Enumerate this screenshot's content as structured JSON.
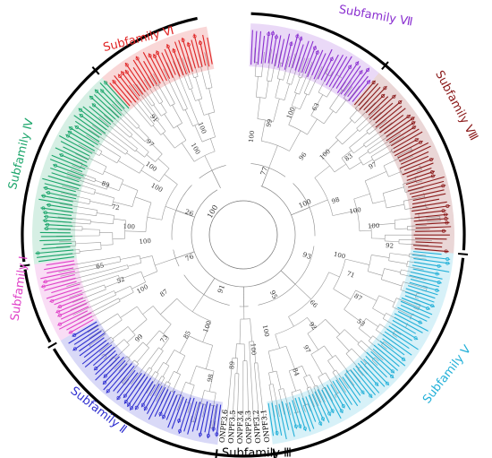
{
  "figure": {
    "subfamilies": [
      {
        "id": "I",
        "label": "Subfamily Ⅰ",
        "color": "#e040c8"
      },
      {
        "id": "II",
        "label": "Subfamily Ⅱ",
        "color": "#2f2fd0"
      },
      {
        "id": "III",
        "label": "Subfamily Ⅲ",
        "color": "#000000"
      },
      {
        "id": "IV",
        "label": "Subfamily Ⅳ",
        "color": "#1aa56a"
      },
      {
        "id": "V",
        "label": "Subfamily Ⅴ",
        "color": "#22b0d8"
      },
      {
        "id": "VI",
        "label": "Subfamily Ⅵ",
        "color": "#e02424"
      },
      {
        "id": "VII",
        "label": "Subfamily Ⅶ",
        "color": "#8a2fd0"
      },
      {
        "id": "VIII",
        "label": "Subfamily Ⅷ",
        "color": "#8b1a1a"
      }
    ],
    "center_support": "100",
    "inner_support_values": [
      "77",
      "100",
      "93",
      "95",
      "91",
      "76",
      "26"
    ],
    "outer_support_values": [
      "100",
      "99",
      "100",
      "63",
      "96",
      "100",
      "83",
      "97",
      "98",
      "100",
      "100",
      "92",
      "100",
      "71",
      "87",
      "53",
      "66",
      "92",
      "97",
      "84",
      "100",
      "100",
      "89",
      "98",
      "100",
      "85",
      "73",
      "99",
      "87",
      "100",
      "52",
      "65",
      "100",
      "100",
      "72",
      "89",
      "100",
      "100",
      "97",
      "91",
      "100",
      "100"
    ],
    "subfamily_iii_leaves": [
      "ONPF3.1",
      "ONPF3.2",
      "ONPF3.3",
      "ONPF3.4",
      "ONPF3.5",
      "ONPF3.6"
    ]
  }
}
